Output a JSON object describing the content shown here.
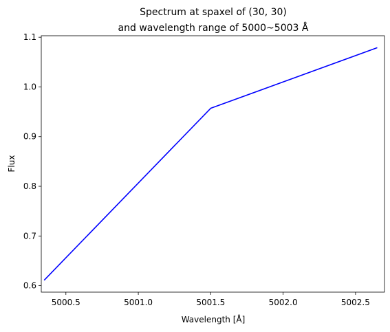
{
  "chart_data": {
    "type": "line",
    "title_lines": [
      "Spectrum at spaxel of (30, 30)",
      "and wavelength range of 5000~5003 Å"
    ],
    "xlabel": "Wavelength [Å]",
    "ylabel": "Flux",
    "xlim": [
      5000.33,
      5002.7
    ],
    "ylim": [
      0.587,
      1.103
    ],
    "xticks": [
      5000.5,
      5001.0,
      5001.5,
      5002.0,
      5002.5
    ],
    "xtick_labels": [
      "5000.5",
      "5001.0",
      "5001.5",
      "5002.0",
      "5002.5"
    ],
    "yticks": [
      0.6,
      0.7,
      0.8,
      0.9,
      1.0,
      1.1
    ],
    "ytick_labels": [
      "0.6",
      "0.7",
      "0.8",
      "0.9",
      "1.0",
      "1.1"
    ],
    "grid": false,
    "series": [
      {
        "color": "#0000ff",
        "x": [
          5000.35,
          5001.5,
          5002.65
        ],
        "y": [
          0.611,
          0.957,
          1.079
        ]
      }
    ]
  }
}
